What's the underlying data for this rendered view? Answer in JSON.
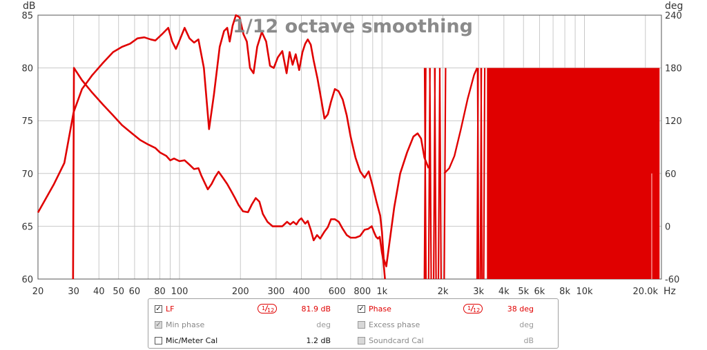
{
  "chart_data": {
    "type": "line",
    "title": "1/12 octave smoothing",
    "xscale": "log",
    "xlim": [
      20,
      24000
    ],
    "x_ticks": [
      20,
      30,
      40,
      50,
      60,
      80,
      100,
      200,
      300,
      400,
      600,
      800,
      1000,
      2000,
      3000,
      4000,
      5000,
      6000,
      8000,
      10000,
      20000
    ],
    "x_tick_labels": [
      "20",
      "30",
      "40",
      "50",
      "60",
      "80",
      "100",
      "200",
      "300",
      "400",
      "600",
      "800",
      "1k",
      "2k",
      "3k",
      "4k",
      "5k",
      "6k",
      "8k",
      "10k",
      "20.0k"
    ],
    "x_unit": "Hz",
    "y_left": {
      "label": "dB",
      "lim": [
        60,
        85
      ],
      "ticks": [
        60,
        65,
        70,
        75,
        80,
        85
      ]
    },
    "y_right": {
      "label": "deg",
      "lim": [
        -60,
        240
      ],
      "ticks": [
        -60,
        0,
        60,
        120,
        180,
        240
      ]
    },
    "grid": true,
    "series": [
      {
        "name": "LF",
        "axis": "left",
        "color": "#e00000",
        "points": [
          [
            20,
            66.3
          ],
          [
            24,
            69
          ],
          [
            27,
            71
          ],
          [
            30,
            75.8
          ],
          [
            33,
            78
          ],
          [
            37,
            79.3
          ],
          [
            42,
            80.5
          ],
          [
            47,
            81.5
          ],
          [
            52,
            82
          ],
          [
            57,
            82.3
          ],
          [
            62,
            82.8
          ],
          [
            67,
            82.9
          ],
          [
            72,
            82.7
          ],
          [
            76,
            82.6
          ],
          [
            82,
            83.2
          ],
          [
            88,
            83.8
          ],
          [
            92,
            82.5
          ],
          [
            96,
            81.8
          ],
          [
            100,
            82.6
          ],
          [
            106,
            83.8
          ],
          [
            112,
            82.8
          ],
          [
            118,
            82.4
          ],
          [
            124,
            82.7
          ],
          [
            132,
            80
          ],
          [
            140,
            74.2
          ],
          [
            148,
            77.5
          ],
          [
            158,
            82
          ],
          [
            166,
            83.5
          ],
          [
            172,
            83.8
          ],
          [
            177,
            82.5
          ],
          [
            183,
            84
          ],
          [
            190,
            85
          ],
          [
            198,
            84.8
          ],
          [
            207,
            83.2
          ],
          [
            215,
            82.5
          ],
          [
            223,
            80
          ],
          [
            232,
            79.5
          ],
          [
            242,
            82
          ],
          [
            255,
            83.4
          ],
          [
            268,
            82.5
          ],
          [
            280,
            80.2
          ],
          [
            292,
            80
          ],
          [
            306,
            81
          ],
          [
            322,
            81.6
          ],
          [
            338,
            79.5
          ],
          [
            350,
            81.5
          ],
          [
            362,
            80.3
          ],
          [
            375,
            81.3
          ],
          [
            390,
            79.8
          ],
          [
            405,
            81.5
          ],
          [
            418,
            82.3
          ],
          [
            430,
            82.7
          ],
          [
            445,
            82.2
          ],
          [
            460,
            80.7
          ],
          [
            480,
            79
          ],
          [
            500,
            77.1
          ],
          [
            520,
            75.2
          ],
          [
            540,
            75.6
          ],
          [
            560,
            76.8
          ],
          [
            585,
            78
          ],
          [
            610,
            77.8
          ],
          [
            640,
            77
          ],
          [
            670,
            75.5
          ],
          [
            700,
            73.5
          ],
          [
            740,
            71.5
          ],
          [
            780,
            70.2
          ],
          [
            820,
            69.6
          ],
          [
            860,
            70.2
          ],
          [
            900,
            68.8
          ],
          [
            940,
            67.3
          ],
          [
            980,
            66
          ],
          [
            1000,
            64.5
          ],
          [
            1020,
            61.9
          ],
          [
            1050,
            61.2
          ],
          [
            1090,
            63.5
          ],
          [
            1150,
            66.8
          ],
          [
            1230,
            70
          ],
          [
            1330,
            72
          ],
          [
            1430,
            73.5
          ],
          [
            1500,
            73.8
          ],
          [
            1560,
            73.3
          ],
          [
            1620,
            71.5
          ],
          [
            1700,
            70.5
          ]
        ]
      },
      {
        "name": "Phase",
        "axis": "right",
        "color": "#e00000",
        "points": [
          [
            29.8,
            -60
          ],
          [
            30.1,
            180
          ],
          [
            33,
            166
          ],
          [
            37,
            152
          ],
          [
            42,
            138
          ],
          [
            47,
            126
          ],
          [
            52,
            115
          ],
          [
            58,
            106
          ],
          [
            64,
            98
          ],
          [
            70,
            93
          ],
          [
            76,
            89
          ],
          [
            80,
            84
          ],
          [
            86,
            80
          ],
          [
            90,
            75
          ],
          [
            94,
            77
          ],
          [
            100,
            74
          ],
          [
            106,
            75
          ],
          [
            112,
            70
          ],
          [
            118,
            65
          ],
          [
            124,
            66
          ],
          [
            128,
            58
          ],
          [
            134,
            48
          ],
          [
            138,
            42
          ],
          [
            144,
            48
          ],
          [
            150,
            56
          ],
          [
            156,
            62
          ],
          [
            164,
            55
          ],
          [
            172,
            48
          ],
          [
            180,
            40
          ],
          [
            188,
            32
          ],
          [
            196,
            24
          ],
          [
            206,
            17
          ],
          [
            218,
            16
          ],
          [
            228,
            25
          ],
          [
            238,
            32
          ],
          [
            248,
            28
          ],
          [
            258,
            14
          ],
          [
            272,
            5
          ],
          [
            288,
            0
          ],
          [
            306,
            0
          ],
          [
            322,
            0
          ],
          [
            340,
            5
          ],
          [
            352,
            2
          ],
          [
            365,
            5
          ],
          [
            378,
            2
          ],
          [
            390,
            7
          ],
          [
            400,
            9
          ],
          [
            408,
            6
          ],
          [
            418,
            3
          ],
          [
            430,
            6
          ],
          [
            445,
            -4
          ],
          [
            460,
            -16
          ],
          [
            478,
            -10
          ],
          [
            495,
            -14
          ],
          [
            520,
            -6
          ],
          [
            540,
            -1
          ],
          [
            560,
            8
          ],
          [
            585,
            8
          ],
          [
            612,
            5
          ],
          [
            640,
            -3
          ],
          [
            670,
            -10
          ],
          [
            700,
            -13
          ],
          [
            740,
            -13
          ],
          [
            780,
            -11
          ],
          [
            820,
            -4
          ],
          [
            855,
            -3
          ],
          [
            890,
            0
          ],
          [
            915,
            -7
          ],
          [
            935,
            -12
          ],
          [
            955,
            -14
          ],
          [
            975,
            -12
          ],
          [
            1000,
            -30
          ],
          [
            1015,
            -38
          ],
          [
            1035,
            -60
          ]
        ]
      }
    ]
  },
  "legend": {
    "rows": [
      [
        {
          "label": "LF",
          "checked": true,
          "disabled": false,
          "style": "red",
          "value": "81.9 dB",
          "smoothing": "1/12"
        },
        {
          "label": "Phase",
          "checked": true,
          "disabled": false,
          "style": "red",
          "value": "38 deg",
          "smoothing": "1/12"
        }
      ],
      [
        {
          "label": "Min phase",
          "checked": true,
          "disabled": true,
          "style": "grey",
          "value": "deg"
        },
        {
          "label": "Excess phase",
          "checked": false,
          "disabled": true,
          "style": "grey",
          "value": "deg"
        }
      ],
      [
        {
          "label": "Mic/Meter Cal",
          "checked": false,
          "disabled": false,
          "style": "dark",
          "value": "1.2 dB"
        },
        {
          "label": "Soundcard Cal",
          "checked": false,
          "disabled": true,
          "style": "grey",
          "value": "dB"
        }
      ]
    ]
  }
}
